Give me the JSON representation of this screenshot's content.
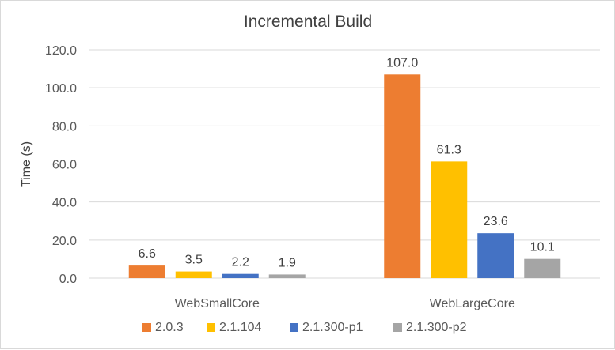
{
  "chart_data": {
    "type": "bar",
    "title": "Incremental Build",
    "xlabel": "",
    "ylabel": "Time (s)",
    "ylim": [
      0,
      120
    ],
    "yticks": [
      "0.0",
      "20.0",
      "40.0",
      "60.0",
      "80.0",
      "100.0",
      "120.0"
    ],
    "categories": [
      "WebSmallCore",
      "WebLargeCore"
    ],
    "series": [
      {
        "name": "2.0.3",
        "values": [
          6.6,
          107.0
        ],
        "labels": [
          "6.6",
          "107.0"
        ],
        "color": "#ed7d31"
      },
      {
        "name": "2.1.104",
        "values": [
          3.5,
          61.3
        ],
        "labels": [
          "3.5",
          "61.3"
        ],
        "color": "#ffc000"
      },
      {
        "name": "2.1.300-p1",
        "values": [
          2.2,
          23.6
        ],
        "labels": [
          "2.2",
          "23.6"
        ],
        "color": "#4472c4"
      },
      {
        "name": "2.1.300-p2",
        "values": [
          1.9,
          10.1
        ],
        "labels": [
          "1.9",
          "10.1"
        ],
        "color": "#a5a5a5"
      }
    ],
    "grid": true,
    "legend": "bottom"
  }
}
